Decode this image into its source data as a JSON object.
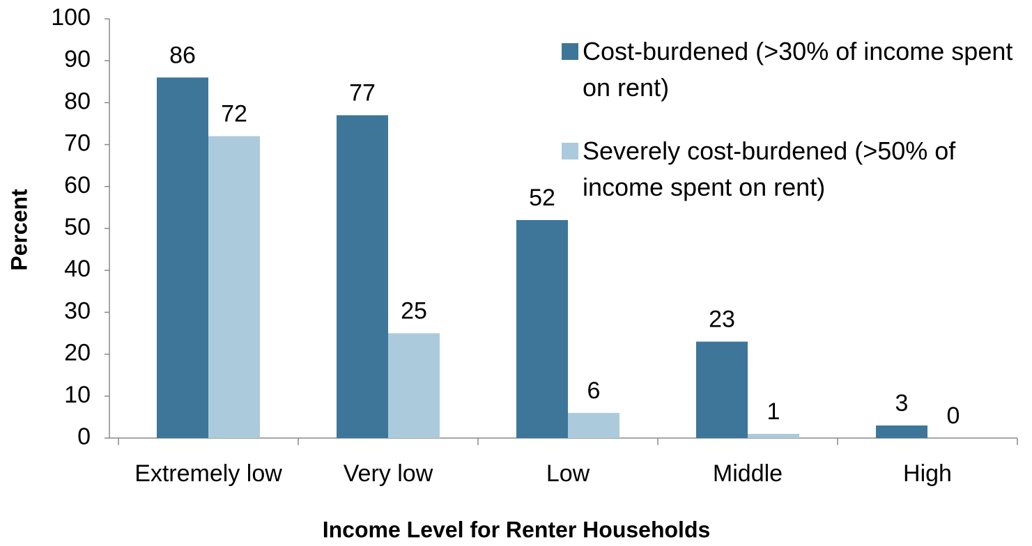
{
  "chart_data": {
    "type": "bar",
    "categories": [
      "Extremely low",
      "Very low",
      "Low",
      "Middle",
      "High"
    ],
    "series": [
      {
        "name": "Cost-burdened (>30% of income spent on rent)",
        "color": "#3d7699",
        "values": [
          86,
          77,
          52,
          23,
          3
        ]
      },
      {
        "name": "Severely cost-burdened (>50% of income spent on rent)",
        "color": "#abcbdc",
        "values": [
          72,
          25,
          6,
          1,
          0
        ]
      }
    ],
    "ylim": [
      0,
      100
    ],
    "yticks": [
      0,
      10,
      20,
      30,
      40,
      50,
      60,
      70,
      80,
      90,
      100
    ],
    "y_label": "Percent",
    "x_label": "Income Level for Renter Households",
    "legend": "upper right",
    "grid": false
  }
}
